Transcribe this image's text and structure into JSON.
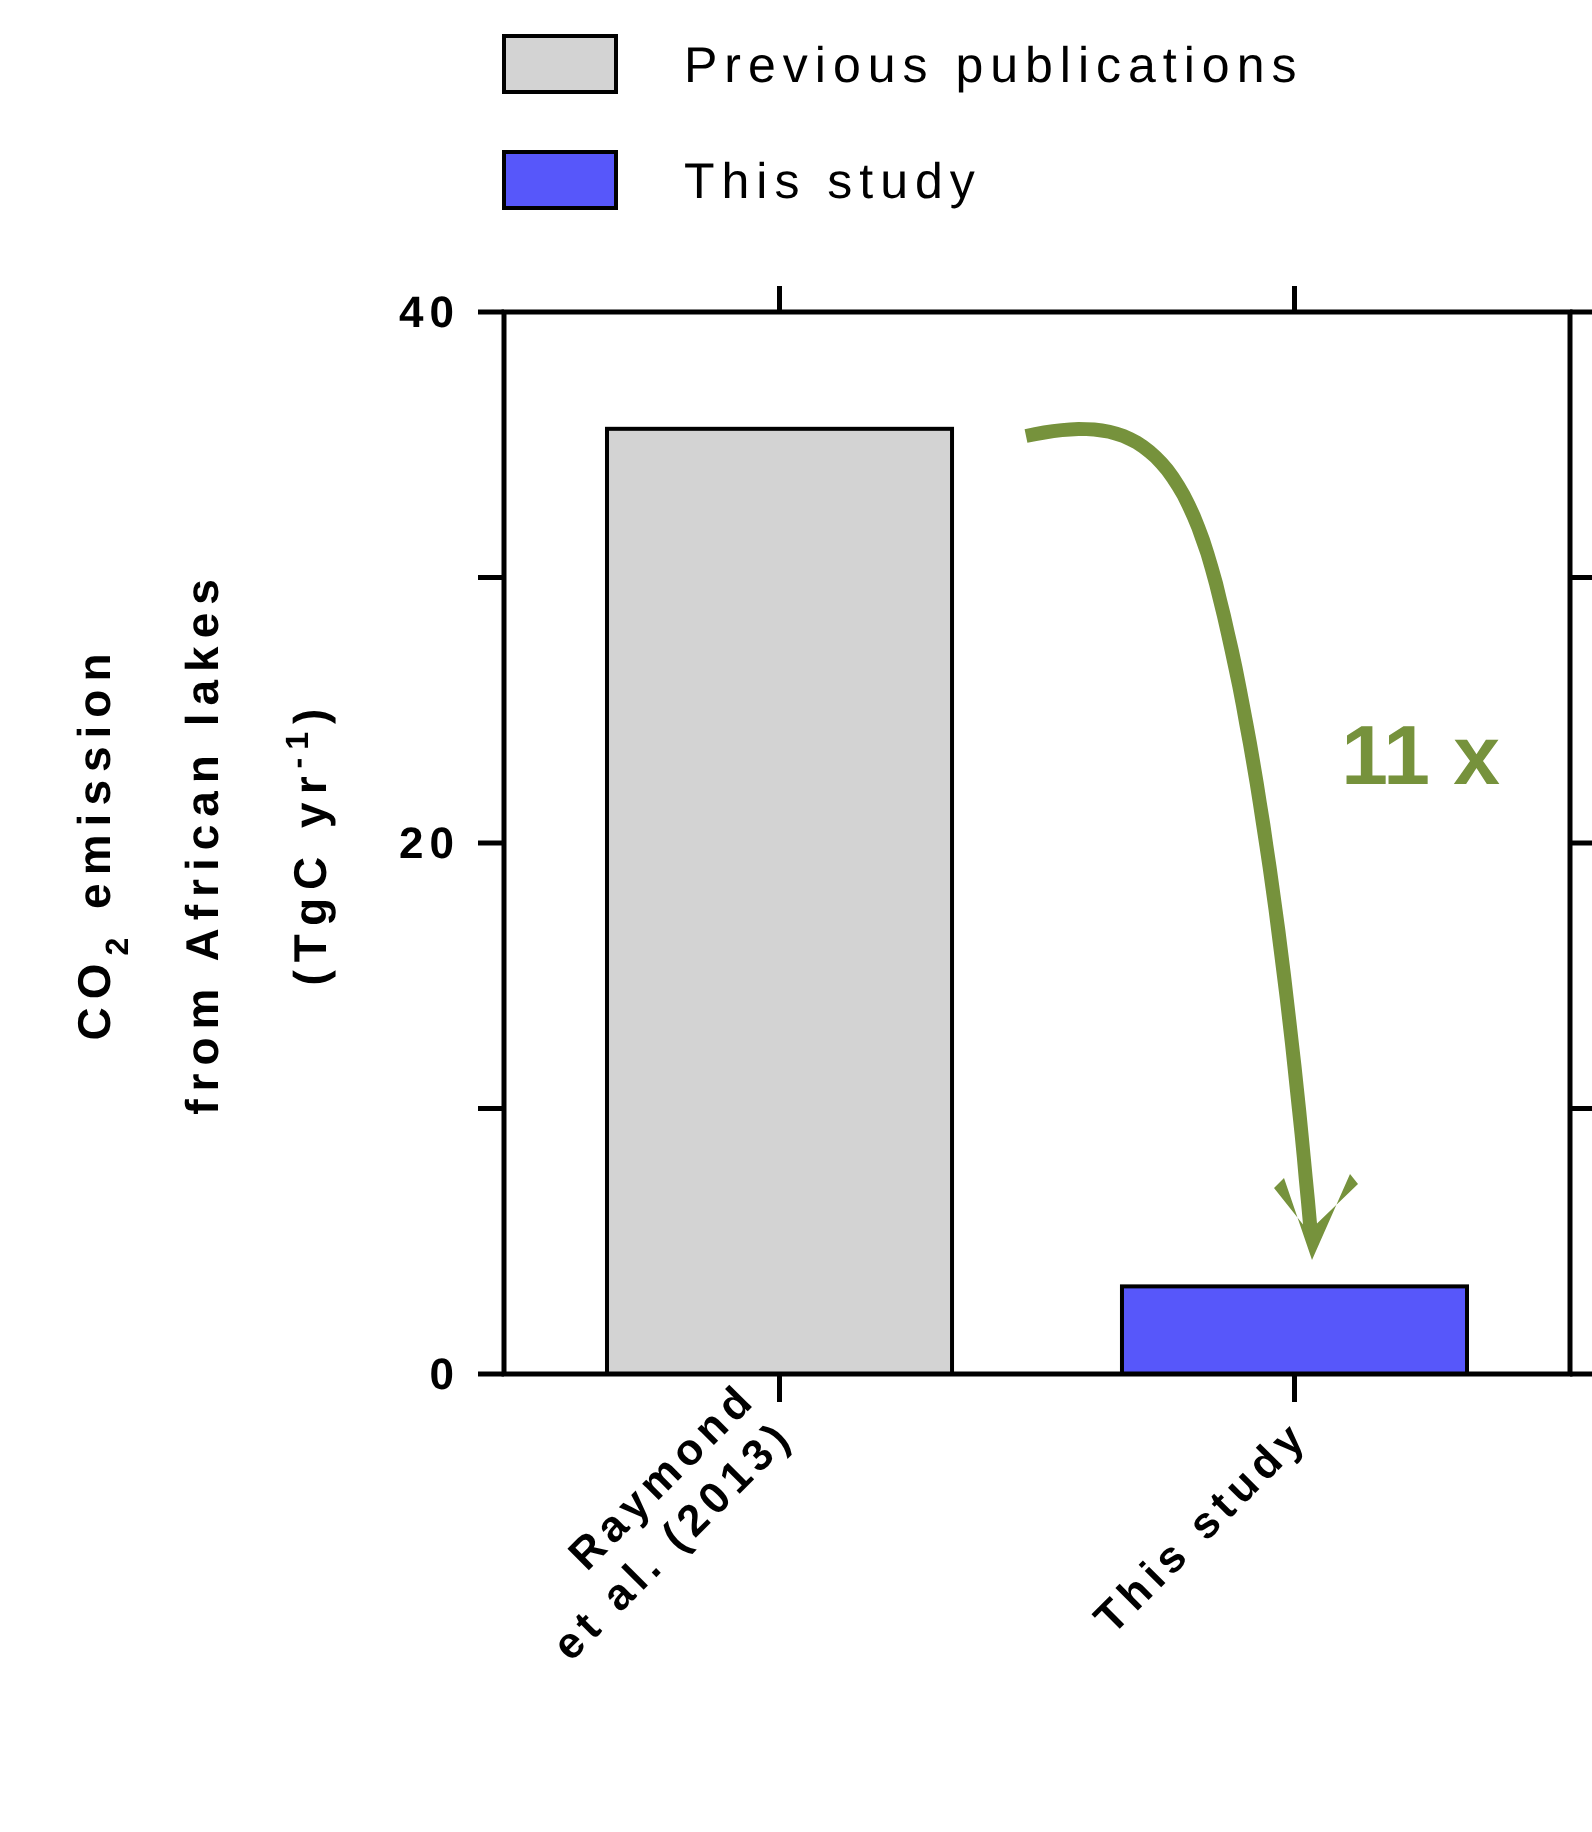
{
  "chart_data": {
    "type": "bar",
    "categories": [
      "Raymond\net al. (2013)",
      "This study"
    ],
    "series": [
      {
        "name": "Previous publications",
        "color": "#d3d3d3",
        "values": [
          35.6,
          null
        ]
      },
      {
        "name": "This study",
        "color": "#5757fa",
        "values": [
          null,
          3.3
        ]
      }
    ],
    "ylabel": "CO$_{2}$ emission\nfrom African lakes\n(TgC yr$^{-1}$)",
    "ylim": [
      0,
      40
    ],
    "yticks": [
      0,
      {
        "value": 10,
        "label": null
      },
      20,
      {
        "value": 30,
        "label": null
      },
      40
    ],
    "annotations": [
      "11 x"
    ],
    "legend": "top",
    "grid": false
  }
}
